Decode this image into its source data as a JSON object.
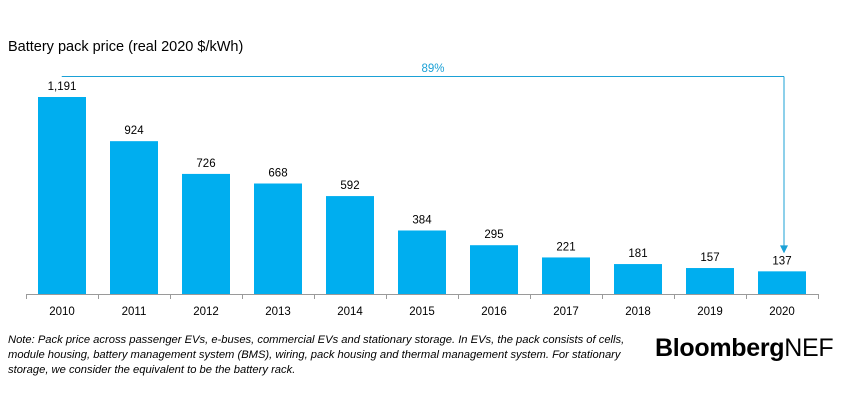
{
  "chart_data": {
    "type": "bar",
    "title": "Battery pack price (real 2020 $/kWh)",
    "categories": [
      "2010",
      "2011",
      "2012",
      "2013",
      "2014",
      "2015",
      "2016",
      "2017",
      "2018",
      "2019",
      "2020"
    ],
    "values": [
      1191,
      924,
      726,
      668,
      592,
      384,
      295,
      221,
      181,
      157,
      137
    ],
    "value_labels": [
      "1,191",
      "924",
      "726",
      "668",
      "592",
      "384",
      "295",
      "221",
      "181",
      "157",
      "137"
    ],
    "annotation": "89%",
    "ylim": [
      0,
      1191
    ],
    "grid": false,
    "bar_color": "#00AEEF",
    "annotation_color": "#1BA1D6"
  },
  "note": "Note: Pack price across passenger EVs, e-buses, commercial EVs and stationary storage. In EVs, the pack consists of cells, module housing, battery management system (BMS), wiring, pack housing and thermal management system. For stationary storage, we consider the equivalent to be the battery rack.",
  "logo": {
    "part1": "Bloomberg",
    "part2": "NEF"
  }
}
